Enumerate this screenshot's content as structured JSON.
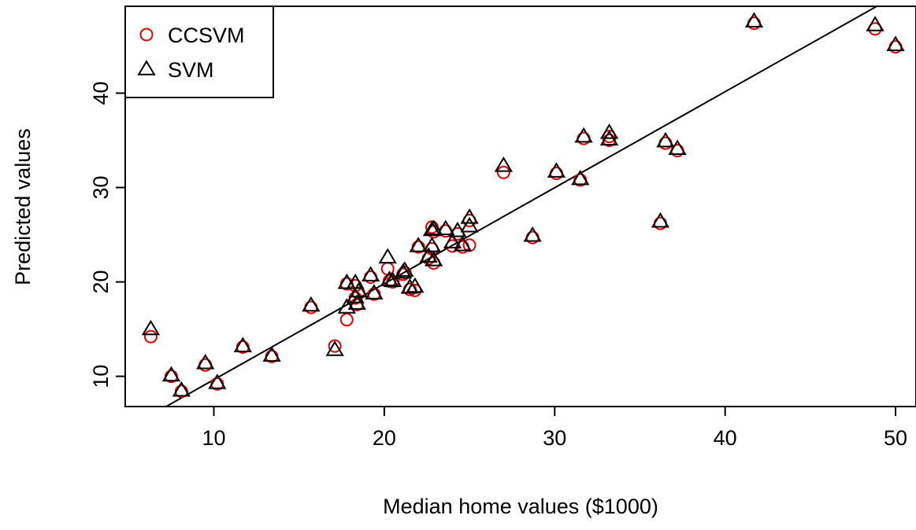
{
  "chart_data": {
    "type": "scatter",
    "xlabel": "Median home values ($1000)",
    "ylabel": "Predicted values",
    "xlim": [
      4.8,
      51.2
    ],
    "ylim": [
      6.8,
      49.2
    ],
    "xticks": [
      10,
      20,
      30,
      40,
      50
    ],
    "yticks": [
      10,
      20,
      30,
      40
    ],
    "legend_position": "top-left",
    "reference_line": {
      "from": [
        7.2,
        6.8
      ],
      "to": [
        48.9,
        49.2
      ],
      "color": "#000000"
    },
    "series": [
      {
        "name": "CCSVM",
        "marker": "circle",
        "color": "#e00000",
        "points": [
          [
            6.3,
            14.2
          ],
          [
            7.5,
            10.0
          ],
          [
            8.1,
            8.4
          ],
          [
            9.5,
            11.2
          ],
          [
            10.2,
            9.2
          ],
          [
            11.7,
            13.1
          ],
          [
            13.4,
            12.1
          ],
          [
            15.7,
            17.3
          ],
          [
            17.1,
            13.2
          ],
          [
            17.8,
            19.8
          ],
          [
            17.8,
            16.0
          ],
          [
            18.3,
            19.6
          ],
          [
            18.3,
            18.3
          ],
          [
            18.4,
            17.6
          ],
          [
            18.5,
            18.8
          ],
          [
            19.2,
            20.5
          ],
          [
            19.4,
            18.7
          ],
          [
            20.2,
            21.4
          ],
          [
            20.3,
            20.1
          ],
          [
            20.5,
            20.0
          ],
          [
            21.1,
            20.8
          ],
          [
            21.2,
            21.0
          ],
          [
            21.5,
            19.2
          ],
          [
            21.8,
            19.1
          ],
          [
            22.0,
            23.7
          ],
          [
            22.6,
            22.5
          ],
          [
            22.8,
            25.8
          ],
          [
            22.8,
            23.5
          ],
          [
            22.9,
            22.0
          ],
          [
            22.9,
            25.3
          ],
          [
            23.6,
            25.4
          ],
          [
            24.0,
            23.8
          ],
          [
            24.3,
            25.1
          ],
          [
            24.6,
            23.7
          ],
          [
            25.0,
            23.9
          ],
          [
            25.0,
            26.5
          ],
          [
            27.0,
            31.6
          ],
          [
            28.7,
            24.7
          ],
          [
            30.1,
            31.5
          ],
          [
            31.5,
            30.8
          ],
          [
            31.7,
            35.2
          ],
          [
            33.2,
            35.4
          ],
          [
            33.2,
            35.0
          ],
          [
            36.2,
            26.2
          ],
          [
            36.5,
            34.7
          ],
          [
            37.2,
            33.9
          ],
          [
            41.7,
            47.4
          ],
          [
            48.8,
            46.8
          ],
          [
            50.0,
            44.9
          ]
        ]
      },
      {
        "name": "SVM",
        "marker": "triangle",
        "color": "#000000",
        "points": [
          [
            6.3,
            15.0
          ],
          [
            7.5,
            10.1
          ],
          [
            8.1,
            8.5
          ],
          [
            9.5,
            11.4
          ],
          [
            10.2,
            9.3
          ],
          [
            11.7,
            13.2
          ],
          [
            13.4,
            12.2
          ],
          [
            15.7,
            17.5
          ],
          [
            17.1,
            12.8
          ],
          [
            17.8,
            19.9
          ],
          [
            17.8,
            17.3
          ],
          [
            18.3,
            19.9
          ],
          [
            18.3,
            18.4
          ],
          [
            18.4,
            17.7
          ],
          [
            18.5,
            19.0
          ],
          [
            19.2,
            20.7
          ],
          [
            19.4,
            18.8
          ],
          [
            20.2,
            22.6
          ],
          [
            20.3,
            20.2
          ],
          [
            20.5,
            20.1
          ],
          [
            21.1,
            21.0
          ],
          [
            21.2,
            21.2
          ],
          [
            21.5,
            19.4
          ],
          [
            21.8,
            19.5
          ],
          [
            22.0,
            23.8
          ],
          [
            22.6,
            22.7
          ],
          [
            22.8,
            25.5
          ],
          [
            22.8,
            23.8
          ],
          [
            22.9,
            22.3
          ],
          [
            22.9,
            25.6
          ],
          [
            23.6,
            25.6
          ],
          [
            24.0,
            24.2
          ],
          [
            24.3,
            25.4
          ],
          [
            24.6,
            23.9
          ],
          [
            25.0,
            25.9
          ],
          [
            25.0,
            26.8
          ],
          [
            27.0,
            32.3
          ],
          [
            28.7,
            24.9
          ],
          [
            30.1,
            31.7
          ],
          [
            31.5,
            30.9
          ],
          [
            31.7,
            35.4
          ],
          [
            33.2,
            35.8
          ],
          [
            33.2,
            35.1
          ],
          [
            36.2,
            26.4
          ],
          [
            36.5,
            34.9
          ],
          [
            37.2,
            34.1
          ],
          [
            41.7,
            47.6
          ],
          [
            48.8,
            47.2
          ],
          [
            50.0,
            45.1
          ]
        ]
      }
    ]
  }
}
